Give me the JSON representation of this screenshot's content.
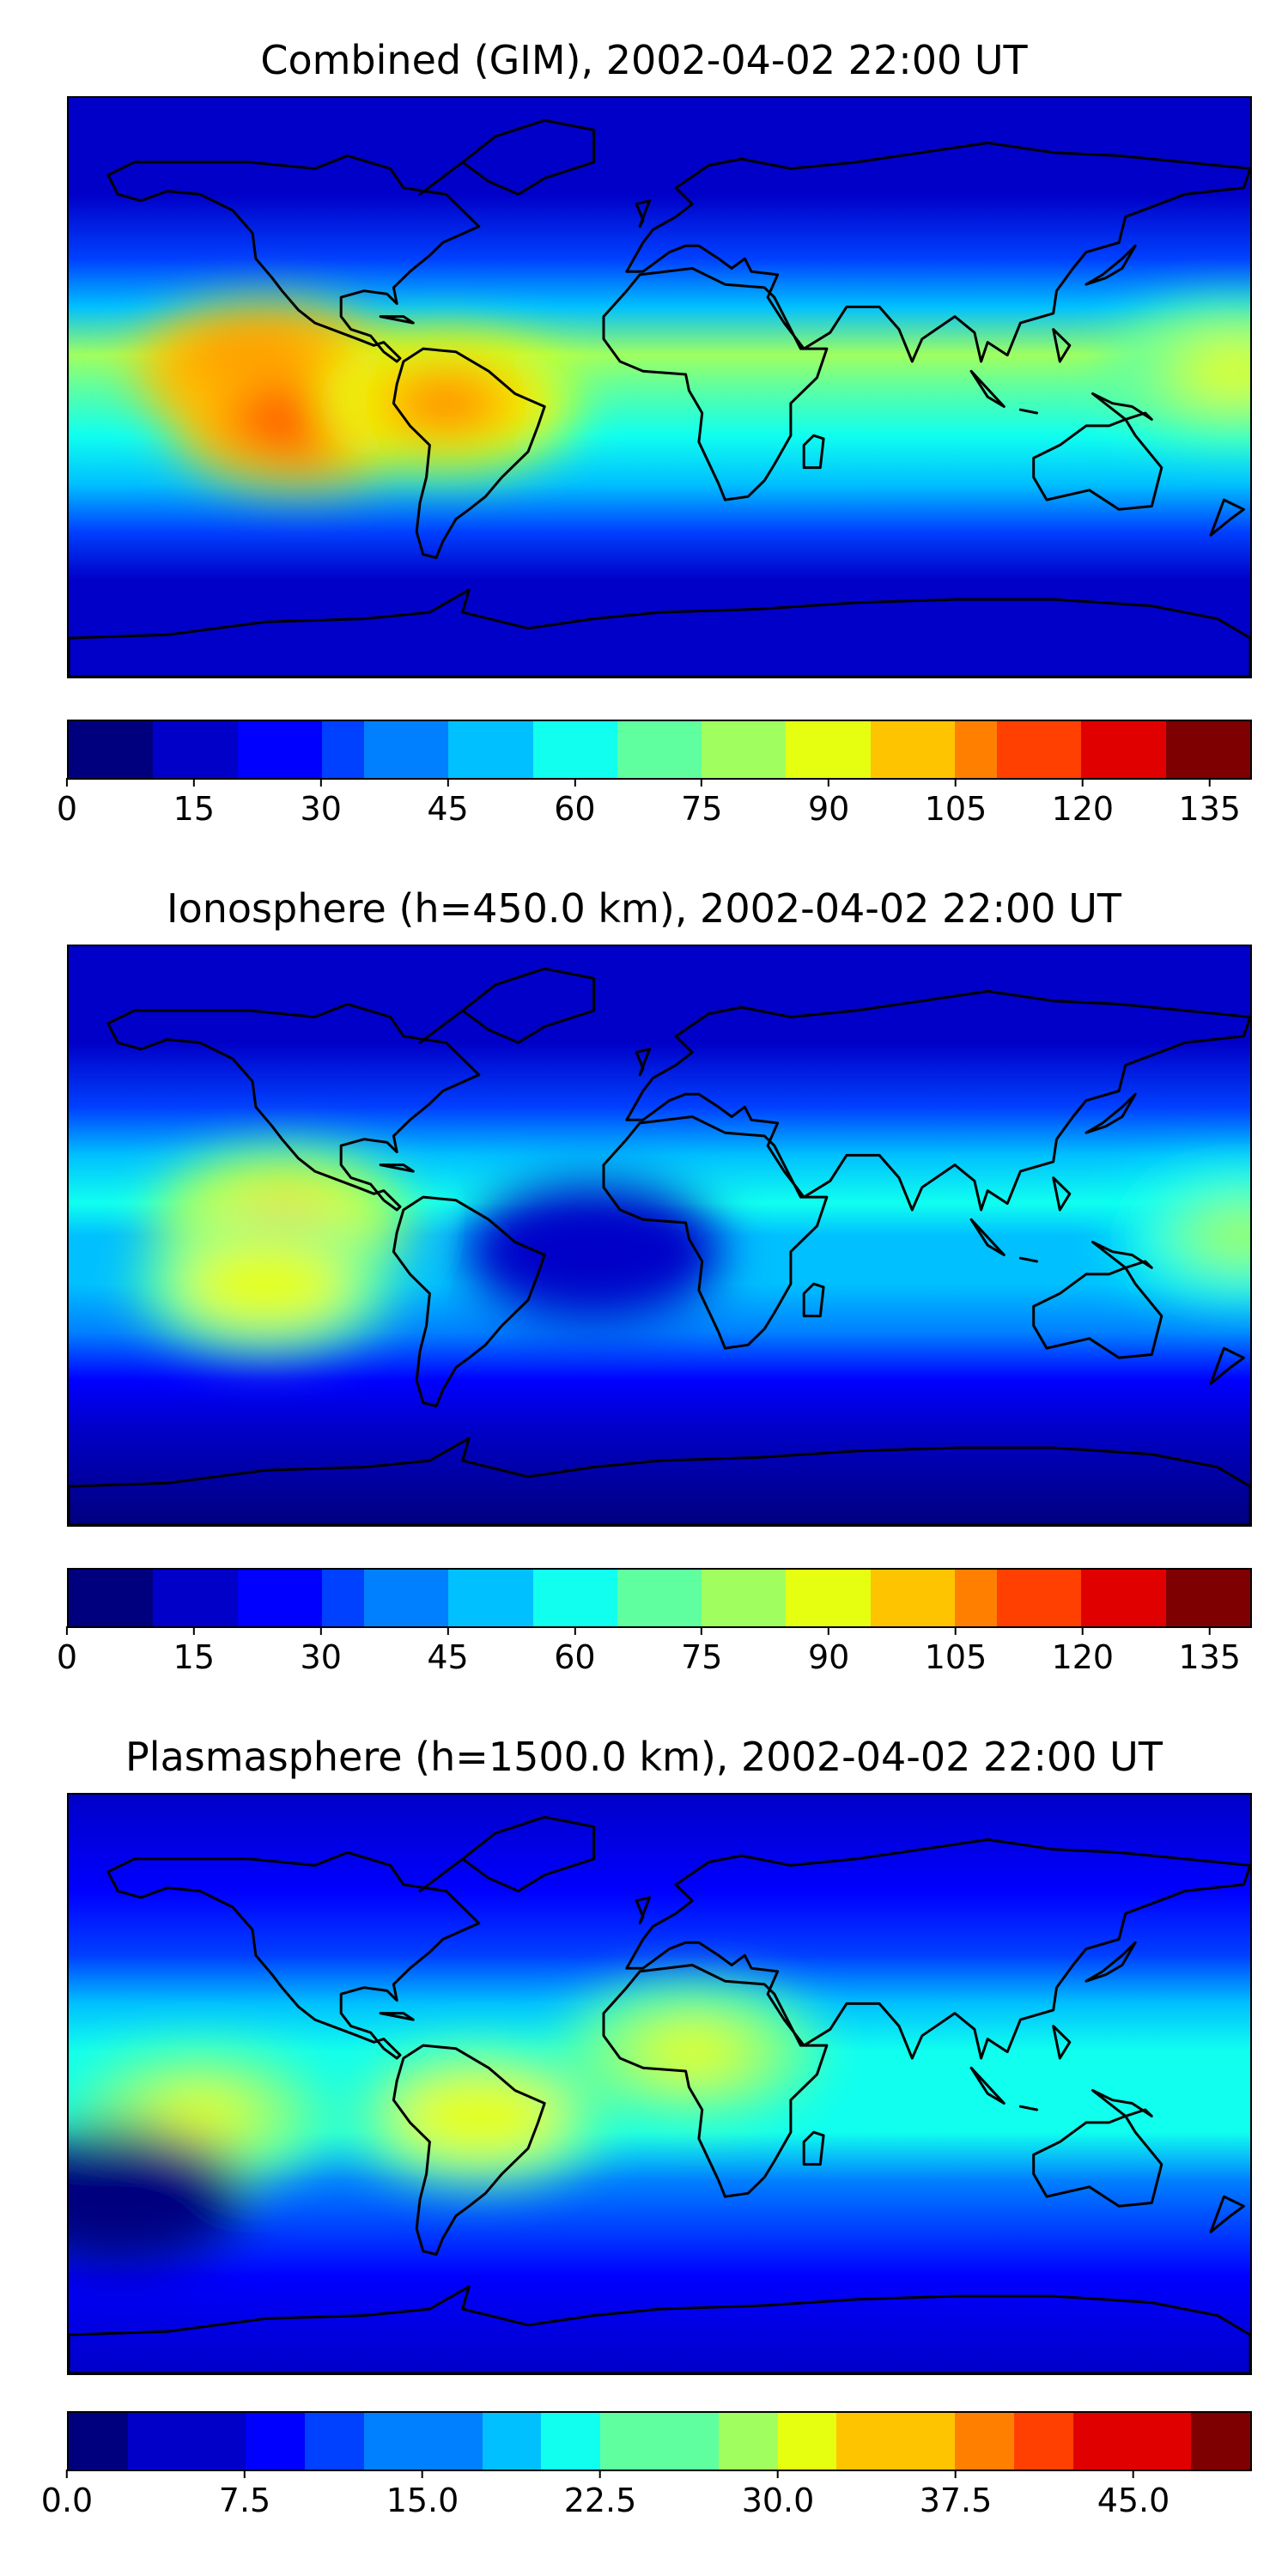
{
  "panels": [
    {
      "title": "Combined (GIM), 2002-04-02 22:00 UT",
      "colorbar": {
        "min": 0,
        "max": 140,
        "step": 5,
        "ticks": [
          "0",
          "15",
          "30",
          "45",
          "60",
          "75",
          "90",
          "105",
          "120",
          "135"
        ]
      },
      "features": [
        {
          "name": "pacific-peak",
          "lon": -120,
          "lat": 5,
          "value": 118
        },
        {
          "name": "pacific-south-peak",
          "lon": -110,
          "lat": -10,
          "value": 120
        },
        {
          "name": "south-america-high",
          "lon": -65,
          "lat": -5,
          "value": 105
        },
        {
          "name": "west-pacific-high",
          "lon": 175,
          "lat": 5,
          "value": 90
        }
      ]
    },
    {
      "title": "Ionosphere  (h=450.0 km), 2002-04-02 22:00 UT",
      "colorbar": {
        "min": 0,
        "max": 140,
        "step": 5,
        "ticks": [
          "0",
          "15",
          "30",
          "45",
          "60",
          "75",
          "90",
          "105",
          "120",
          "135"
        ]
      },
      "features": [
        {
          "name": "pacific-peak",
          "lon": -115,
          "lat": 5,
          "value": 95
        },
        {
          "name": "pacific-south-peak",
          "lon": -120,
          "lat": -15,
          "value": 93
        },
        {
          "name": "atlantic-low",
          "lon": -20,
          "lat": -5,
          "value": 12
        },
        {
          "name": "west-pacific-high",
          "lon": 178,
          "lat": 0,
          "value": 75
        }
      ]
    },
    {
      "title": "Plasmasphere (h=1500.0 km), 2002-04-02 22:00 UT",
      "colorbar": {
        "min": 0,
        "max": 50,
        "step": 2.5,
        "ticks": [
          "0.0",
          "7.5",
          "15.0",
          "22.5",
          "30.0",
          "37.5",
          "45.0"
        ]
      },
      "features": [
        {
          "name": "brazil-peak",
          "lon": -55,
          "lat": -10,
          "value": 33
        },
        {
          "name": "pacific-peak",
          "lon": -140,
          "lat": -10,
          "value": 30
        },
        {
          "name": "africa-peak",
          "lon": 10,
          "lat": 10,
          "value": 31
        },
        {
          "name": "south-pacific-low",
          "lon": -165,
          "lat": -35,
          "value": 3
        }
      ]
    }
  ],
  "colors": {
    "jet": [
      "#00007f",
      "#0000c8",
      "#0000ff",
      "#0040ff",
      "#0080ff",
      "#00c0ff",
      "#10ffef",
      "#5fffa0",
      "#a0ff5f",
      "#e6ff10",
      "#ffc400",
      "#ff8000",
      "#ff4000",
      "#e10000",
      "#7f0000"
    ],
    "coastline": "#000000"
  }
}
